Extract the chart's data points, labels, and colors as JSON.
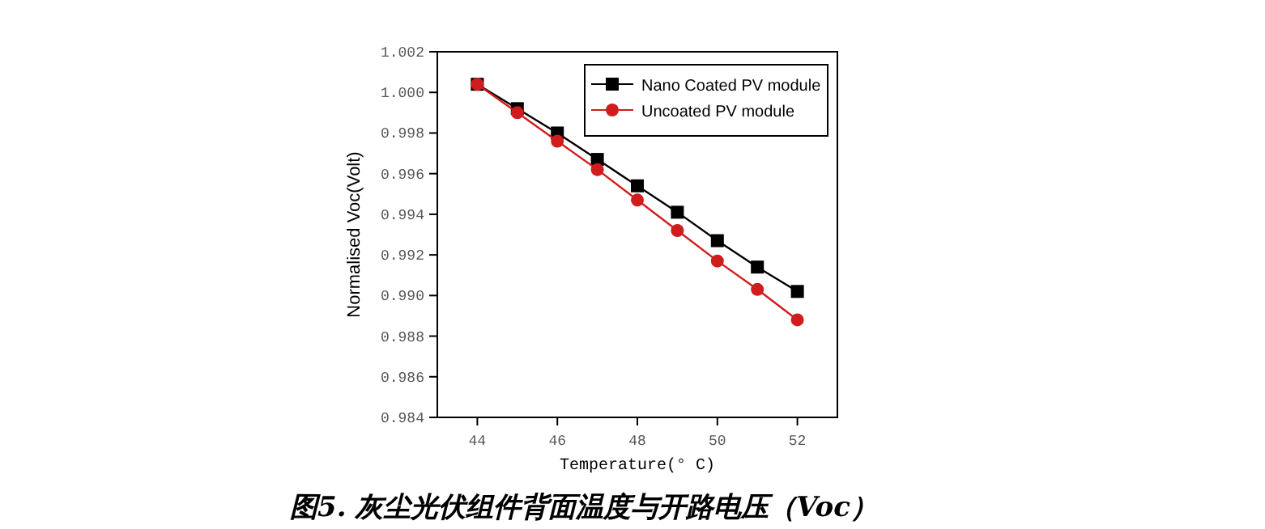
{
  "chart_data": {
    "type": "line",
    "title": "图5. 灰尘光伏组件背面温度与开路电压（Voc）",
    "xlabel": "Temperature(° C)",
    "ylabel": "Normalised Voc(Volt)",
    "x": [
      44,
      45,
      46,
      47,
      48,
      49,
      50,
      51,
      52
    ],
    "xlim": [
      43,
      53
    ],
    "xticks": [
      44,
      46,
      48,
      50,
      52
    ],
    "ylim": [
      0.984,
      1.002
    ],
    "yticks": [
      0.984,
      0.986,
      0.988,
      {
        "value": 0.99,
        "label": "0.990"
      },
      0.992,
      0.994,
      0.996,
      0.998,
      {
        "value": 1.0,
        "label": "1.000"
      },
      1.002
    ],
    "grid": false,
    "legend": "top right",
    "line_style": "solid",
    "series": [
      {
        "name": "Nano Coated PV module",
        "color": "#000000",
        "marker": "square",
        "values": [
          1.0004,
          0.9992,
          0.998,
          0.9967,
          0.9954,
          0.9941,
          0.9927,
          0.9914,
          0.9902
        ]
      },
      {
        "name": "Uncoated PV module",
        "color": "#d01c1c",
        "marker": "circle",
        "values": [
          1.0004,
          0.999,
          0.9976,
          0.9962,
          0.9947,
          0.9932,
          0.9917,
          0.9903,
          0.9888
        ]
      }
    ]
  }
}
